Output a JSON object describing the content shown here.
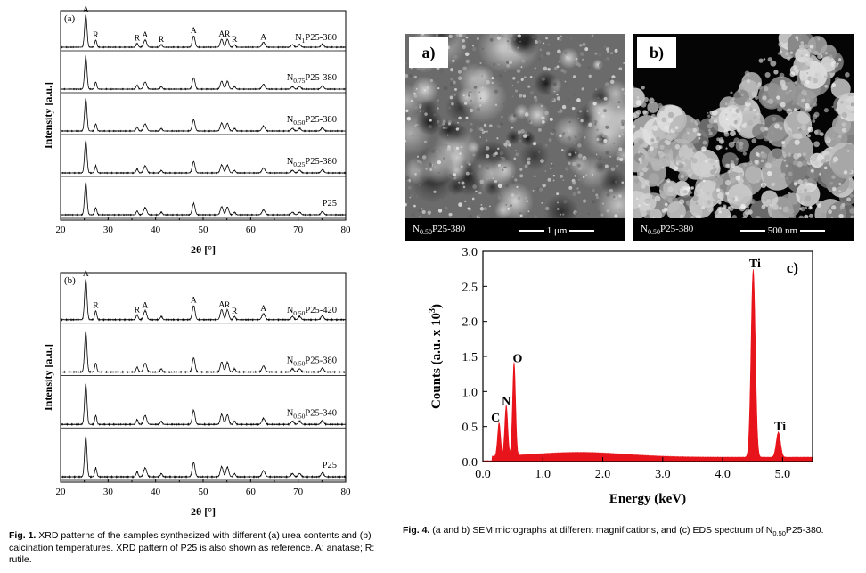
{
  "chart_data": [
    {
      "type": "line",
      "panel": "(a)",
      "xlabel": "2θ [°]",
      "ylabel": "Intensity [a.u.]",
      "xlim": [
        20,
        80
      ],
      "xticks": [
        "20",
        "30",
        "40",
        "50",
        "60",
        "70",
        "80"
      ],
      "series": [
        {
          "name": "N1P25-380",
          "sub": "1",
          "prefix": "N",
          "suffix": "P25-380"
        },
        {
          "name": "N0.75P25-380",
          "sub": "0.75",
          "prefix": "N",
          "suffix": "P25-380"
        },
        {
          "name": "N0.50P25-380",
          "sub": "0.50",
          "prefix": "N",
          "suffix": "P25-380"
        },
        {
          "name": "N0.25P25-380",
          "sub": "0.25",
          "prefix": "N",
          "suffix": "P25-380"
        },
        {
          "name": "P25",
          "sub": "",
          "prefix": "P25",
          "suffix": ""
        }
      ],
      "peaks": [
        {
          "x": 25.3,
          "h": 1.0,
          "w": 0.35
        },
        {
          "x": 27.4,
          "h": 0.22,
          "w": 0.3
        },
        {
          "x": 36.1,
          "h": 0.12,
          "w": 0.3
        },
        {
          "x": 37.8,
          "h": 0.22,
          "w": 0.45
        },
        {
          "x": 41.2,
          "h": 0.08,
          "w": 0.3
        },
        {
          "x": 48.0,
          "h": 0.35,
          "w": 0.4
        },
        {
          "x": 53.9,
          "h": 0.25,
          "w": 0.4
        },
        {
          "x": 55.1,
          "h": 0.24,
          "w": 0.4
        },
        {
          "x": 56.6,
          "h": 0.08,
          "w": 0.3
        },
        {
          "x": 62.7,
          "h": 0.15,
          "w": 0.45
        },
        {
          "x": 68.8,
          "h": 0.08,
          "w": 0.4
        },
        {
          "x": 70.3,
          "h": 0.08,
          "w": 0.4
        },
        {
          "x": 75.1,
          "h": 0.1,
          "w": 0.4
        }
      ],
      "annotations": [
        {
          "text": "A",
          "x": 25.3
        },
        {
          "text": "R",
          "x": 27.4
        },
        {
          "text": "R",
          "x": 36.1
        },
        {
          "text": "A",
          "x": 37.8
        },
        {
          "text": "R",
          "x": 41.2
        },
        {
          "text": "A",
          "x": 48.0
        },
        {
          "text": "A",
          "x": 53.9
        },
        {
          "text": "R",
          "x": 55.1
        },
        {
          "text": "R",
          "x": 56.6
        },
        {
          "text": "A",
          "x": 62.7
        }
      ]
    },
    {
      "type": "line",
      "panel": "(b)",
      "xlabel": "2θ [°]",
      "ylabel": "Intensity [a.u.]",
      "xlim": [
        20,
        80
      ],
      "xticks": [
        "20",
        "30",
        "40",
        "50",
        "60",
        "70",
        "80"
      ],
      "series": [
        {
          "name": "N0.50P25-420",
          "sub": "0.50",
          "prefix": "N",
          "suffix": "P25-420"
        },
        {
          "name": "N0.50P25-380",
          "sub": "0.50",
          "prefix": "N",
          "suffix": "P25-380"
        },
        {
          "name": "N0.50P25-340",
          "sub": "0.50",
          "prefix": "N",
          "suffix": "P25-340"
        },
        {
          "name": "P25",
          "sub": "",
          "prefix": "P25",
          "suffix": ""
        }
      ],
      "annotations": [
        {
          "text": "A",
          "x": 25.3
        },
        {
          "text": "R",
          "x": 27.4
        },
        {
          "text": "R",
          "x": 36.1
        },
        {
          "text": "A",
          "x": 37.8
        },
        {
          "text": "A",
          "x": 48.0
        },
        {
          "text": "A",
          "x": 53.9
        },
        {
          "text": "R",
          "x": 55.1
        },
        {
          "text": "R",
          "x": 56.6
        },
        {
          "text": "A",
          "x": 62.7
        }
      ]
    },
    {
      "type": "area",
      "panel": "c)",
      "xlabel": "Energy (keV)",
      "ylabel": "Counts (a.u. x 10",
      "ylabel_sup": "3",
      "ylabel_end": ")",
      "xlim": [
        0,
        5.5
      ],
      "ylim": [
        0,
        3.0
      ],
      "xticks": [
        "0.0",
        "1.0",
        "2.0",
        "3.0",
        "4.0",
        "5.0"
      ],
      "yticks": [
        "0.0",
        "0.5",
        "1.0",
        "1.5",
        "2.0",
        "2.5",
        "3.0"
      ],
      "color": "#e8141b",
      "peaks": [
        {
          "label": "C",
          "x": 0.27,
          "y": 0.48
        },
        {
          "label": "N",
          "x": 0.39,
          "y": 0.72
        },
        {
          "label": "O",
          "x": 0.52,
          "y": 1.33
        },
        {
          "label": "Ti",
          "x": 4.51,
          "y": 2.68
        },
        {
          "label": "Ti",
          "x": 4.93,
          "y": 0.36
        }
      ]
    }
  ],
  "sem": {
    "a": {
      "tag": "a)",
      "label_pre": "N",
      "label_sub": "0.50",
      "label_post": "P25-380",
      "scale": "1 μm"
    },
    "b": {
      "tag": "b)",
      "label_pre": "N",
      "label_sub": "0.50",
      "label_post": "P25-380",
      "scale": "500 nm"
    }
  },
  "captions": {
    "fig1_label": "Fig. 1.",
    "fig1_text": " XRD patterns of the samples synthesized with different (a) urea contents and (b) calcination temperatures. XRD pattern of P25 is also shown as reference. A: anatase; R: rutile.",
    "fig4_label": "Fig. 4.",
    "fig4_text_pre": " (a and b) SEM micrographs at different magnifications, and (c) EDS spectrum of N",
    "fig4_sub": "0.50",
    "fig4_text_post": "P25-380."
  }
}
